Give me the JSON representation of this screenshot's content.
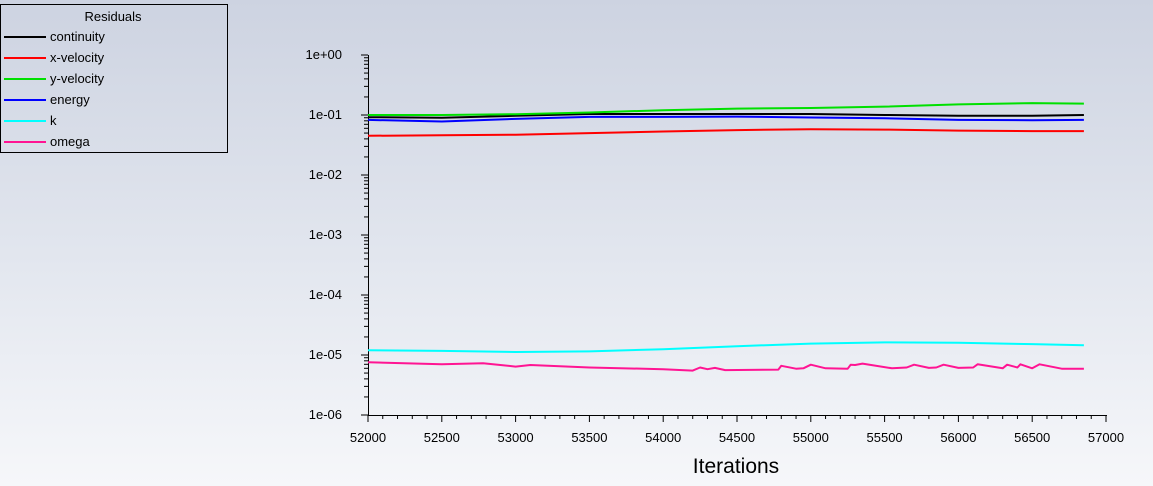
{
  "chart_data": {
    "type": "line",
    "title": "",
    "xlabel": "Iterations",
    "ylabel": "",
    "xlim": [
      52000,
      57000
    ],
    "ylim": [
      1e-06,
      1
    ],
    "yscale": "log",
    "grid": false,
    "legend": {
      "title": "Residuals",
      "placement": "top-left"
    },
    "x_ticks": [
      52000,
      52500,
      53000,
      53500,
      54000,
      54500,
      55000,
      55500,
      56000,
      56500,
      57000
    ],
    "x_tick_labels": [
      "52000",
      "52500",
      "53000",
      "53500",
      "54000",
      "54500",
      "55000",
      "55500",
      "56000",
      "56500",
      "57000"
    ],
    "y_ticks": [
      1,
      0.1,
      0.01,
      0.001,
      0.0001,
      1e-05,
      1e-06
    ],
    "y_tick_labels": [
      "1e+00",
      "1e-01",
      "1e-02",
      "1e-03",
      "1e-04",
      "1e-05",
      "1e-06"
    ],
    "series": [
      {
        "name": "continuity",
        "color": "#000000",
        "points": [
          [
            52000,
            0.092
          ],
          [
            52500,
            0.09
          ],
          [
            53000,
            0.097
          ],
          [
            53500,
            0.104
          ],
          [
            54000,
            0.104
          ],
          [
            54500,
            0.104
          ],
          [
            55000,
            0.104
          ],
          [
            55500,
            0.1
          ],
          [
            56000,
            0.097
          ],
          [
            56500,
            0.097
          ],
          [
            56850,
            0.1
          ]
        ]
      },
      {
        "name": "x-velocity",
        "color": "#ff0000",
        "points": [
          [
            52000,
            0.045
          ],
          [
            52500,
            0.046
          ],
          [
            53000,
            0.047
          ],
          [
            53500,
            0.05
          ],
          [
            54000,
            0.053
          ],
          [
            54500,
            0.056
          ],
          [
            55000,
            0.058
          ],
          [
            55500,
            0.057
          ],
          [
            56000,
            0.055
          ],
          [
            56500,
            0.054
          ],
          [
            56850,
            0.054
          ]
        ]
      },
      {
        "name": "y-velocity",
        "color": "#00e000",
        "points": [
          [
            52000,
            0.1
          ],
          [
            52500,
            0.1
          ],
          [
            53000,
            0.103
          ],
          [
            53500,
            0.11
          ],
          [
            54000,
            0.12
          ],
          [
            54500,
            0.128
          ],
          [
            55000,
            0.131
          ],
          [
            55500,
            0.138
          ],
          [
            56000,
            0.15
          ],
          [
            56500,
            0.158
          ],
          [
            56850,
            0.155
          ]
        ]
      },
      {
        "name": "energy",
        "color": "#0000ff",
        "points": [
          [
            52000,
            0.083
          ],
          [
            52500,
            0.078
          ],
          [
            53000,
            0.086
          ],
          [
            53500,
            0.093
          ],
          [
            54000,
            0.093
          ],
          [
            54500,
            0.094
          ],
          [
            55000,
            0.091
          ],
          [
            55500,
            0.088
          ],
          [
            56000,
            0.083
          ],
          [
            56500,
            0.082
          ],
          [
            56850,
            0.083
          ]
        ]
      },
      {
        "name": "k",
        "color": "#00ffff",
        "points": [
          [
            52000,
            1.2e-05
          ],
          [
            52500,
            1.17e-05
          ],
          [
            53000,
            1.12e-05
          ],
          [
            53500,
            1.15e-05
          ],
          [
            54000,
            1.25e-05
          ],
          [
            54500,
            1.4e-05
          ],
          [
            55000,
            1.55e-05
          ],
          [
            55500,
            1.62e-05
          ],
          [
            56000,
            1.6e-05
          ],
          [
            56500,
            1.52e-05
          ],
          [
            56850,
            1.45e-05
          ]
        ]
      },
      {
        "name": "omega",
        "color": "#ff1493",
        "points": [
          [
            52000,
            7.6e-06
          ],
          [
            52500,
            7e-06
          ],
          [
            52780,
            7.3e-06
          ],
          [
            53000,
            6.4e-06
          ],
          [
            53100,
            6.8e-06
          ],
          [
            53500,
            6.2e-06
          ],
          [
            54000,
            5.8e-06
          ],
          [
            54200,
            5.5e-06
          ],
          [
            54250,
            6.2e-06
          ],
          [
            54300,
            5.8e-06
          ],
          [
            54350,
            6.1e-06
          ],
          [
            54420,
            5.6e-06
          ],
          [
            54780,
            5.7e-06
          ],
          [
            54800,
            6.6e-06
          ],
          [
            54900,
            5.9e-06
          ],
          [
            54950,
            6e-06
          ],
          [
            55000,
            6.9e-06
          ],
          [
            55100,
            6e-06
          ],
          [
            55250,
            5.9e-06
          ],
          [
            55270,
            6.9e-06
          ],
          [
            55300,
            6.8e-06
          ],
          [
            55350,
            7.2e-06
          ],
          [
            55550,
            6e-06
          ],
          [
            55650,
            6.2e-06
          ],
          [
            55700,
            6.9e-06
          ],
          [
            55800,
            6.1e-06
          ],
          [
            55850,
            6.2e-06
          ],
          [
            55900,
            6.9e-06
          ],
          [
            56000,
            6.1e-06
          ],
          [
            56100,
            6.2e-06
          ],
          [
            56130,
            7e-06
          ],
          [
            56300,
            6e-06
          ],
          [
            56330,
            6.9e-06
          ],
          [
            56400,
            6.2e-06
          ],
          [
            56420,
            7e-06
          ],
          [
            56500,
            6e-06
          ],
          [
            56550,
            7e-06
          ],
          [
            56700,
            5.9e-06
          ],
          [
            56850,
            5.9e-06
          ]
        ]
      }
    ]
  }
}
